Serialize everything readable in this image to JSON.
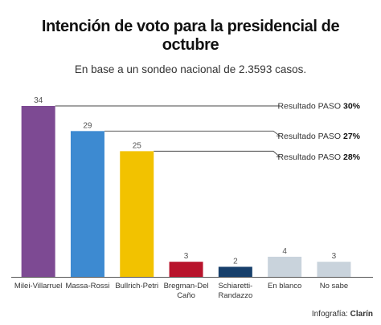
{
  "header": {
    "title_line1": "Intención de voto para la presidencial de",
    "title_line2": "octubre",
    "subtitle": "En base a un sondeo nacional de 2.3593 casos."
  },
  "credit": {
    "prefix": "Infografía:",
    "brand": "Clarín"
  },
  "chart_data": {
    "type": "bar",
    "title": "Intención de voto para la presidencial de octubre",
    "subtitle": "En base a un sondeo nacional de 2.3593 casos.",
    "categories": [
      "Milei-Villarruel",
      "Massa-Rossi",
      "Bullrich-Petri",
      "Bregman-Del Caño",
      "Schiaretti-Randazzo",
      "En blanco",
      "No sabe"
    ],
    "category_lines": [
      [
        "Milei-Villarruel"
      ],
      [
        "Massa-Rossi"
      ],
      [
        "Bullrich-Petri"
      ],
      [
        "Bregman-Del",
        "Caño"
      ],
      [
        "Schiaretti-",
        "Randazzo"
      ],
      [
        "En blanco"
      ],
      [
        "No sabe"
      ]
    ],
    "values": [
      34,
      29,
      25,
      3,
      2,
      4,
      3
    ],
    "colors": [
      "#7d4a93",
      "#3d8ad1",
      "#f2c200",
      "#b8142c",
      "#173f6b",
      "#c9d3dc",
      "#c9d3dc"
    ],
    "ylim": [
      0,
      34
    ],
    "grid": false,
    "annotations": [
      {
        "category": "Milei-Villarruel",
        "text": "Resultado PASO",
        "value_text": "30%"
      },
      {
        "category": "Massa-Rossi",
        "text": "Resultado PASO",
        "value_text": "27%"
      },
      {
        "category": "Bullrich-Petri",
        "text": "Resultado PASO",
        "value_text": "28%"
      }
    ]
  }
}
